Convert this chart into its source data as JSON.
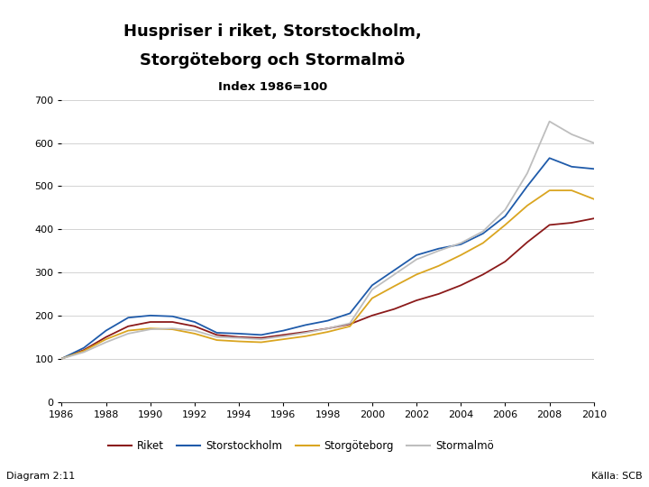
{
  "title_line1": "Huspriser i riket, Storstockholm,",
  "title_line2": "Storgöteborg och Stormalmö",
  "subtitle": "Index 1986=100",
  "diagram_label": "Diagram 2:11",
  "source_label": "Källa: SCB",
  "years": [
    1986,
    1987,
    1988,
    1989,
    1990,
    1991,
    1992,
    1993,
    1994,
    1995,
    1996,
    1997,
    1998,
    1999,
    2000,
    2001,
    2002,
    2003,
    2004,
    2005,
    2006,
    2007,
    2008,
    2009,
    2010
  ],
  "riket": [
    100,
    120,
    150,
    175,
    185,
    185,
    175,
    155,
    150,
    148,
    155,
    162,
    170,
    180,
    200,
    215,
    235,
    250,
    270,
    295,
    325,
    370,
    410,
    415,
    425
  ],
  "storstockholm": [
    100,
    125,
    165,
    195,
    200,
    198,
    185,
    160,
    158,
    155,
    165,
    178,
    188,
    205,
    270,
    305,
    340,
    355,
    365,
    390,
    430,
    500,
    565,
    545,
    540
  ],
  "storgoteborg": [
    100,
    118,
    145,
    165,
    170,
    168,
    158,
    143,
    140,
    138,
    145,
    152,
    162,
    175,
    240,
    268,
    295,
    315,
    340,
    368,
    410,
    455,
    490,
    490,
    470
  ],
  "stormalmoe": [
    100,
    115,
    138,
    158,
    168,
    170,
    165,
    150,
    148,
    145,
    152,
    160,
    170,
    182,
    260,
    295,
    330,
    350,
    368,
    395,
    445,
    530,
    650,
    620,
    600
  ],
  "colors": {
    "riket": "#8B1A1A",
    "storstockholm": "#1F5BAA",
    "storgoteborg": "#DAA520",
    "stormalmoe": "#BEBEBE"
  },
  "ylim": [
    0,
    700
  ],
  "yticks": [
    0,
    100,
    200,
    300,
    400,
    500,
    600,
    700
  ],
  "xticks": [
    1986,
    1988,
    1990,
    1992,
    1994,
    1996,
    1998,
    2000,
    2002,
    2004,
    2006,
    2008,
    2010
  ],
  "bg_color": "#FFFFFF",
  "header_bg": "#1B3A8C",
  "footer_bg": "#1B3A8C",
  "legend_labels": [
    "Riket",
    "Storstockholm",
    "Storgöteborg",
    "Stormalmö"
  ]
}
